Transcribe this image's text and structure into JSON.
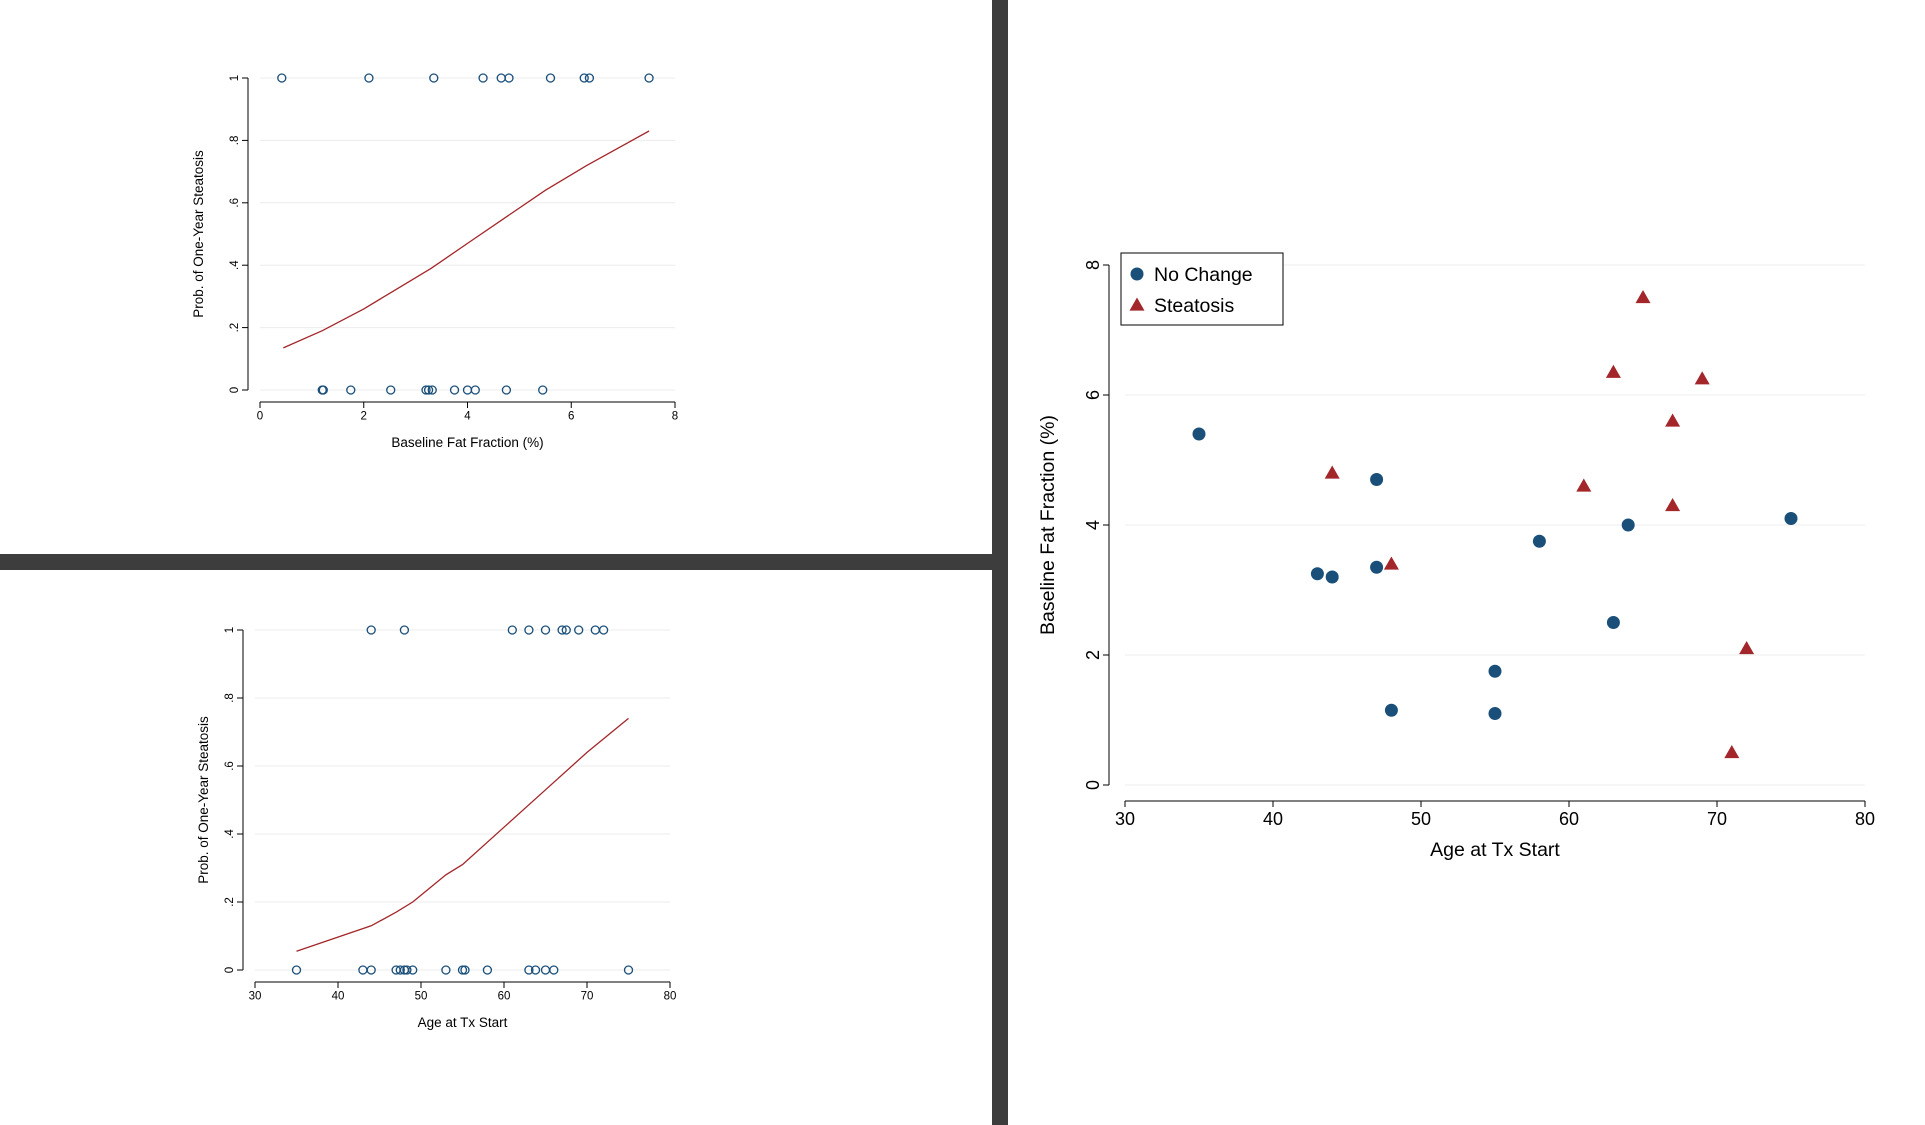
{
  "colors": {
    "divider": "#3d3d3d",
    "hollow_marker": "#1a4f7a",
    "fit_line": "#a3262a",
    "no_change": "#1a4f7a",
    "steatosis": "#a3262a",
    "grid": "#ececec"
  },
  "chart_data": [
    {
      "id": "fatfraction_vs_prob",
      "type": "scatter",
      "xlabel": "Baseline Fat Fraction (%)",
      "ylabel": "Prob. of One-Year Steatosis",
      "xlim": [
        0,
        8
      ],
      "ylim": [
        0,
        1
      ],
      "xticks": [
        0,
        2,
        4,
        6,
        8
      ],
      "yticks": [
        0,
        0.2,
        0.4,
        0.6,
        0.8,
        1
      ],
      "ytick_labels": [
        "0",
        ".2",
        ".4",
        ".6",
        ".8",
        "1"
      ],
      "grid": true,
      "series": [
        {
          "kind": "hollow-points",
          "x": [
            0.42,
            2.1,
            3.35,
            4.3,
            4.65,
            4.8,
            5.6,
            6.25,
            6.35,
            7.5,
            1.2,
            1.22,
            1.75,
            2.52,
            3.2,
            3.25,
            3.32,
            3.75,
            4.0,
            4.15,
            4.75,
            5.45
          ],
          "y": [
            1,
            1,
            1,
            1,
            1,
            1,
            1,
            1,
            1,
            1,
            0,
            0,
            0,
            0,
            0,
            0,
            0,
            0,
            0,
            0,
            0,
            0
          ]
        },
        {
          "kind": "fit-line",
          "x": [
            0.45,
            1.2,
            2.0,
            2.5,
            3.3,
            4.0,
            5.5,
            6.3,
            7.5
          ],
          "y": [
            0.135,
            0.19,
            0.26,
            0.31,
            0.39,
            0.47,
            0.64,
            0.72,
            0.83
          ]
        }
      ]
    },
    {
      "id": "age_vs_prob",
      "type": "scatter",
      "xlabel": "Age at Tx Start",
      "ylabel": "Prob. of One-Year Steatosis",
      "xlim": [
        30,
        80
      ],
      "ylim": [
        0,
        1
      ],
      "xticks": [
        30,
        40,
        50,
        60,
        70,
        80
      ],
      "yticks": [
        0,
        0.2,
        0.4,
        0.6,
        0.8,
        1
      ],
      "ytick_labels": [
        "0",
        ".2",
        ".4",
        ".6",
        ".8",
        "1"
      ],
      "grid": true,
      "series": [
        {
          "kind": "hollow-points",
          "x": [
            44,
            48,
            61,
            63,
            65,
            67,
            67.5,
            69,
            71,
            72,
            35,
            43,
            44,
            47,
            47.5,
            48,
            48.3,
            49,
            53,
            55,
            55.3,
            58,
            63,
            63.8,
            65,
            66,
            75
          ],
          "y": [
            1,
            1,
            1,
            1,
            1,
            1,
            1,
            1,
            1,
            1,
            0,
            0,
            0,
            0,
            0,
            0,
            0,
            0,
            0,
            0,
            0,
            0,
            0,
            0,
            0,
            0,
            0
          ]
        },
        {
          "kind": "fit-line",
          "x": [
            35,
            44,
            47,
            49,
            53,
            55,
            60,
            65,
            70,
            75
          ],
          "y": [
            0.055,
            0.13,
            0.17,
            0.2,
            0.28,
            0.31,
            0.42,
            0.53,
            0.64,
            0.74
          ]
        }
      ]
    },
    {
      "id": "age_vs_fatfraction",
      "type": "scatter",
      "xlabel": "Age at Tx Start",
      "ylabel": "Baseline Fat Fraction (%)",
      "xlim": [
        30,
        80
      ],
      "ylim": [
        0,
        8
      ],
      "xticks": [
        30,
        40,
        50,
        60,
        70,
        80
      ],
      "yticks": [
        0,
        2,
        4,
        6,
        8
      ],
      "ytick_labels": [
        "0",
        "2",
        "4",
        "6",
        "8"
      ],
      "grid": true,
      "legend": "top-left",
      "series": [
        {
          "name": "No Change",
          "marker": "filled-circle",
          "x": [
            35,
            43,
            44,
            47,
            47,
            48,
            55,
            55,
            58,
            63,
            64,
            75
          ],
          "y": [
            5.4,
            3.25,
            3.2,
            4.7,
            3.35,
            1.15,
            1.75,
            1.1,
            3.75,
            2.5,
            4.0,
            4.1
          ]
        },
        {
          "name": "Steatosis",
          "marker": "filled-triangle",
          "x": [
            44,
            48,
            61,
            63,
            65,
            67,
            67,
            69,
            71,
            72
          ],
          "y": [
            4.8,
            3.4,
            4.6,
            6.35,
            7.5,
            5.6,
            4.3,
            6.25,
            0.5,
            2.1
          ]
        }
      ]
    }
  ]
}
